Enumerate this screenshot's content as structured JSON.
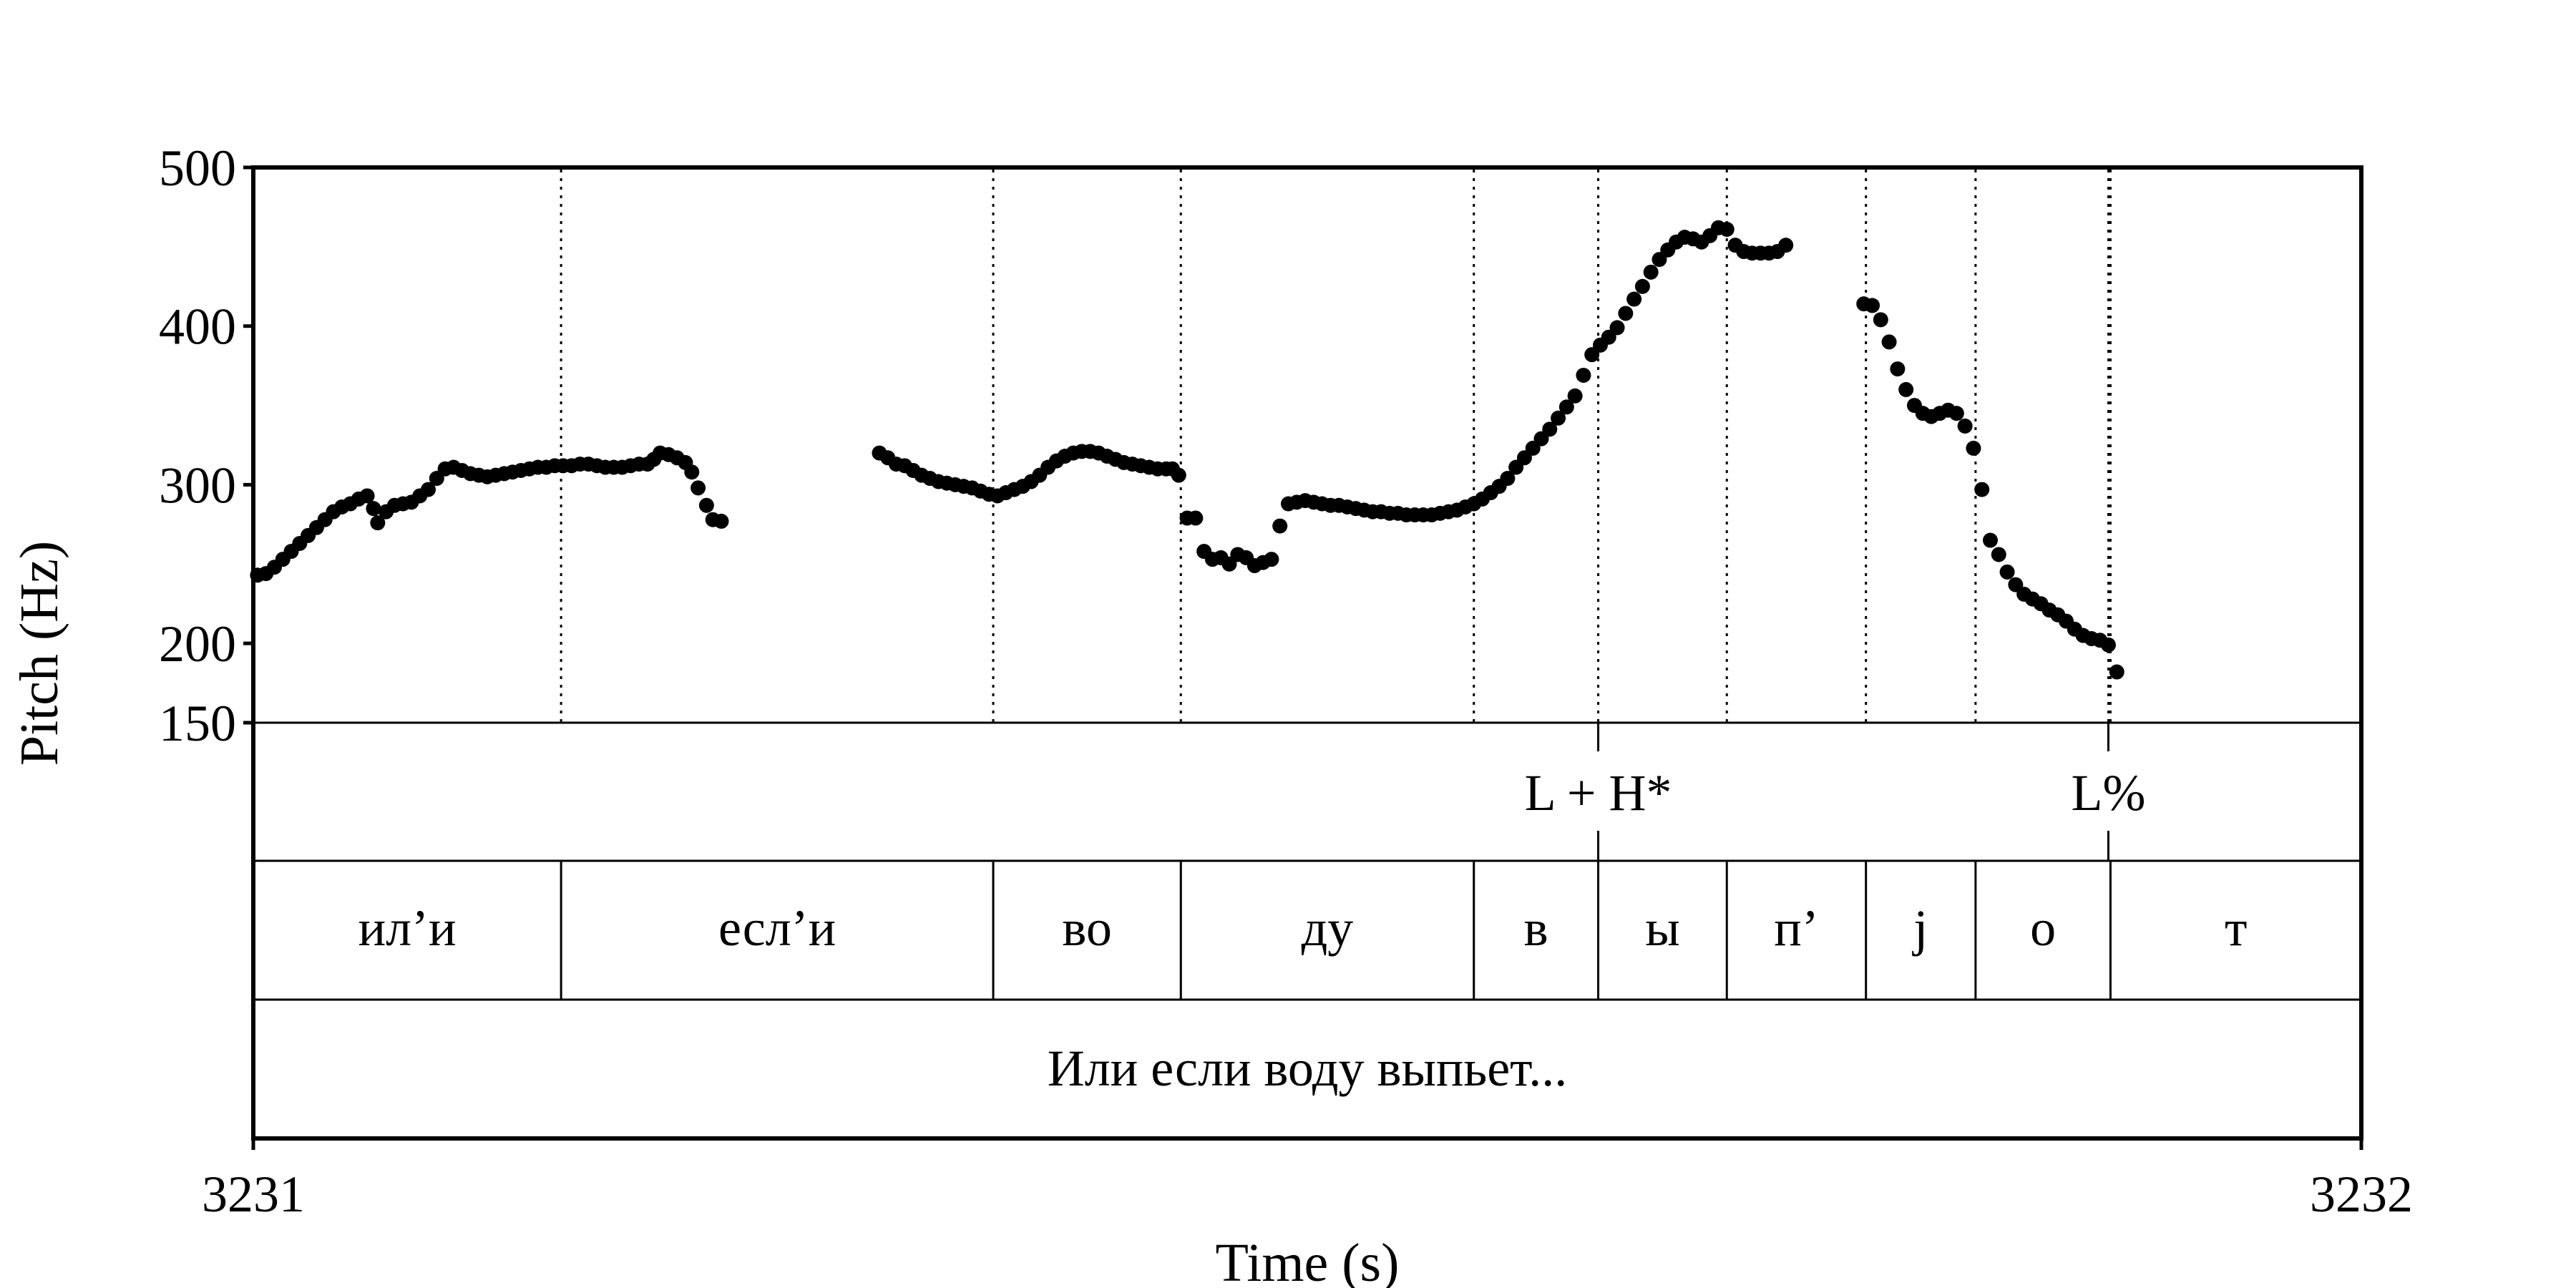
{
  "chart_data": {
    "type": "scatter",
    "ylabel": "Pitch (Hz)",
    "xlabel": "Time (s)",
    "xlim": [
      3231,
      3232
    ],
    "ylim": [
      150,
      500
    ],
    "yticks": [
      "500",
      "400",
      "300",
      "200",
      "150"
    ],
    "ytick_values": [
      500,
      400,
      300,
      200,
      150
    ],
    "xticks": [
      "3231",
      "3232"
    ],
    "xtick_values": [
      3231,
      3232
    ],
    "tones": [
      {
        "label": "L + H*",
        "time": 3231.638
      },
      {
        "label": "L%",
        "time": 3231.88
      }
    ],
    "segments": [
      {
        "label": "ил’и",
        "start": 3231.0,
        "end": 3231.146
      },
      {
        "label": "есл’и",
        "start": 3231.146,
        "end": 3231.351
      },
      {
        "label": "во",
        "start": 3231.351,
        "end": 3231.44
      },
      {
        "label": "ду",
        "start": 3231.44,
        "end": 3231.579
      },
      {
        "label": "в",
        "start": 3231.579,
        "end": 3231.638
      },
      {
        "label": "ы",
        "start": 3231.638,
        "end": 3231.699
      },
      {
        "label": "п’",
        "start": 3231.699,
        "end": 3231.765
      },
      {
        "label": "j",
        "start": 3231.765,
        "end": 3231.817
      },
      {
        "label": "о",
        "start": 3231.817,
        "end": 3231.881
      },
      {
        "label": "т",
        "start": 3231.881,
        "end": 3232.0
      }
    ],
    "sentence": "Или если воду выпьет...",
    "pitch_points": [
      [
        3231.002,
        243
      ],
      [
        3231.006,
        244
      ],
      [
        3231.01,
        248
      ],
      [
        3231.014,
        253
      ],
      [
        3231.018,
        258
      ],
      [
        3231.022,
        263
      ],
      [
        3231.026,
        268
      ],
      [
        3231.03,
        273
      ],
      [
        3231.034,
        278
      ],
      [
        3231.038,
        283
      ],
      [
        3231.042,
        286
      ],
      [
        3231.046,
        288
      ],
      [
        3231.05,
        291
      ],
      [
        3231.054,
        293
      ],
      [
        3231.057,
        285
      ],
      [
        3231.059,
        276
      ],
      [
        3231.063,
        283
      ],
      [
        3231.067,
        287
      ],
      [
        3231.071,
        288
      ],
      [
        3231.075,
        289
      ],
      [
        3231.079,
        293
      ],
      [
        3231.083,
        297
      ],
      [
        3231.087,
        304
      ],
      [
        3231.091,
        310
      ],
      [
        3231.095,
        311
      ],
      [
        3231.099,
        309
      ],
      [
        3231.103,
        307
      ],
      [
        3231.107,
        306
      ],
      [
        3231.111,
        305
      ],
      [
        3231.115,
        306
      ],
      [
        3231.119,
        307
      ],
      [
        3231.123,
        308
      ],
      [
        3231.127,
        309
      ],
      [
        3231.131,
        310
      ],
      [
        3231.135,
        311
      ],
      [
        3231.139,
        311
      ],
      [
        3231.143,
        312
      ],
      [
        3231.147,
        312
      ],
      [
        3231.151,
        312
      ],
      [
        3231.155,
        313
      ],
      [
        3231.159,
        313
      ],
      [
        3231.163,
        312
      ],
      [
        3231.167,
        311
      ],
      [
        3231.171,
        311
      ],
      [
        3231.175,
        311
      ],
      [
        3231.179,
        312
      ],
      [
        3231.183,
        313
      ],
      [
        3231.187,
        313
      ],
      [
        3231.19,
        316
      ],
      [
        3231.193,
        320
      ],
      [
        3231.197,
        319
      ],
      [
        3231.201,
        317
      ],
      [
        3231.205,
        314
      ],
      [
        3231.208,
        308
      ],
      [
        3231.211,
        298
      ],
      [
        3231.215,
        287
      ],
      [
        3231.218,
        278
      ],
      [
        3231.222,
        277
      ],
      [
        3231.297,
        320
      ],
      [
        3231.301,
        317
      ],
      [
        3231.305,
        313
      ],
      [
        3231.309,
        312
      ],
      [
        3231.313,
        309
      ],
      [
        3231.317,
        306
      ],
      [
        3231.321,
        304
      ],
      [
        3231.325,
        302
      ],
      [
        3231.329,
        301
      ],
      [
        3231.333,
        300
      ],
      [
        3231.337,
        299
      ],
      [
        3231.341,
        298
      ],
      [
        3231.345,
        296
      ],
      [
        3231.349,
        294
      ],
      [
        3231.353,
        293
      ],
      [
        3231.357,
        295
      ],
      [
        3231.361,
        297
      ],
      [
        3231.365,
        299
      ],
      [
        3231.369,
        302
      ],
      [
        3231.373,
        306
      ],
      [
        3231.377,
        311
      ],
      [
        3231.381,
        315
      ],
      [
        3231.385,
        318
      ],
      [
        3231.389,
        320
      ],
      [
        3231.393,
        321
      ],
      [
        3231.397,
        321
      ],
      [
        3231.401,
        320
      ],
      [
        3231.405,
        318
      ],
      [
        3231.409,
        316
      ],
      [
        3231.413,
        314
      ],
      [
        3231.417,
        313
      ],
      [
        3231.421,
        312
      ],
      [
        3231.425,
        311
      ],
      [
        3231.429,
        310
      ],
      [
        3231.433,
        310
      ],
      [
        3231.436,
        310
      ],
      [
        3231.439,
        306
      ],
      [
        3231.443,
        279
      ],
      [
        3231.447,
        279
      ],
      [
        3231.451,
        258
      ],
      [
        3231.455,
        253
      ],
      [
        3231.459,
        254
      ],
      [
        3231.463,
        250
      ],
      [
        3231.467,
        256
      ],
      [
        3231.471,
        254
      ],
      [
        3231.475,
        249
      ],
      [
        3231.479,
        251
      ],
      [
        3231.483,
        253
      ],
      [
        3231.487,
        274
      ],
      [
        3231.491,
        288
      ],
      [
        3231.495,
        289
      ],
      [
        3231.499,
        290
      ],
      [
        3231.503,
        289
      ],
      [
        3231.507,
        288
      ],
      [
        3231.511,
        287
      ],
      [
        3231.515,
        287
      ],
      [
        3231.519,
        286
      ],
      [
        3231.523,
        285
      ],
      [
        3231.527,
        284
      ],
      [
        3231.531,
        283
      ],
      [
        3231.535,
        283
      ],
      [
        3231.539,
        282
      ],
      [
        3231.543,
        282
      ],
      [
        3231.547,
        281
      ],
      [
        3231.551,
        281
      ],
      [
        3231.555,
        281
      ],
      [
        3231.559,
        281
      ],
      [
        3231.563,
        282
      ],
      [
        3231.567,
        283
      ],
      [
        3231.571,
        284
      ],
      [
        3231.575,
        286
      ],
      [
        3231.579,
        288
      ],
      [
        3231.583,
        291
      ],
      [
        3231.587,
        295
      ],
      [
        3231.591,
        299
      ],
      [
        3231.595,
        304
      ],
      [
        3231.599,
        311
      ],
      [
        3231.603,
        317
      ],
      [
        3231.607,
        323
      ],
      [
        3231.611,
        329
      ],
      [
        3231.615,
        335
      ],
      [
        3231.619,
        342
      ],
      [
        3231.623,
        349
      ],
      [
        3231.627,
        356
      ],
      [
        3231.631,
        369
      ],
      [
        3231.635,
        382
      ],
      [
        3231.639,
        388
      ],
      [
        3231.643,
        393
      ],
      [
        3231.647,
        399
      ],
      [
        3231.651,
        408
      ],
      [
        3231.655,
        417
      ],
      [
        3231.659,
        425
      ],
      [
        3231.663,
        434
      ],
      [
        3231.667,
        442
      ],
      [
        3231.671,
        448
      ],
      [
        3231.675,
        453
      ],
      [
        3231.679,
        456
      ],
      [
        3231.683,
        455
      ],
      [
        3231.687,
        453
      ],
      [
        3231.691,
        457
      ],
      [
        3231.695,
        462
      ],
      [
        3231.699,
        461
      ],
      [
        3231.703,
        451
      ],
      [
        3231.707,
        447
      ],
      [
        3231.711,
        446
      ],
      [
        3231.715,
        446
      ],
      [
        3231.719,
        446
      ],
      [
        3231.723,
        447
      ],
      [
        3231.727,
        451
      ],
      [
        3231.764,
        414
      ],
      [
        3231.768,
        413
      ],
      [
        3231.772,
        404
      ],
      [
        3231.776,
        390
      ],
      [
        3231.78,
        373
      ],
      [
        3231.784,
        360
      ],
      [
        3231.788,
        350
      ],
      [
        3231.792,
        345
      ],
      [
        3231.796,
        343
      ],
      [
        3231.8,
        345
      ],
      [
        3231.804,
        347
      ],
      [
        3231.808,
        345
      ],
      [
        3231.812,
        337
      ],
      [
        3231.816,
        323
      ],
      [
        3231.82,
        297
      ],
      [
        3231.824,
        265
      ],
      [
        3231.828,
        256
      ],
      [
        3231.832,
        245
      ],
      [
        3231.836,
        237
      ],
      [
        3231.84,
        231
      ],
      [
        3231.844,
        228
      ],
      [
        3231.848,
        225
      ],
      [
        3231.852,
        221
      ],
      [
        3231.856,
        218
      ],
      [
        3231.86,
        214
      ],
      [
        3231.864,
        209
      ],
      [
        3231.868,
        205
      ],
      [
        3231.872,
        203
      ],
      [
        3231.876,
        202
      ],
      [
        3231.88,
        199
      ],
      [
        3231.884,
        182
      ]
    ]
  }
}
